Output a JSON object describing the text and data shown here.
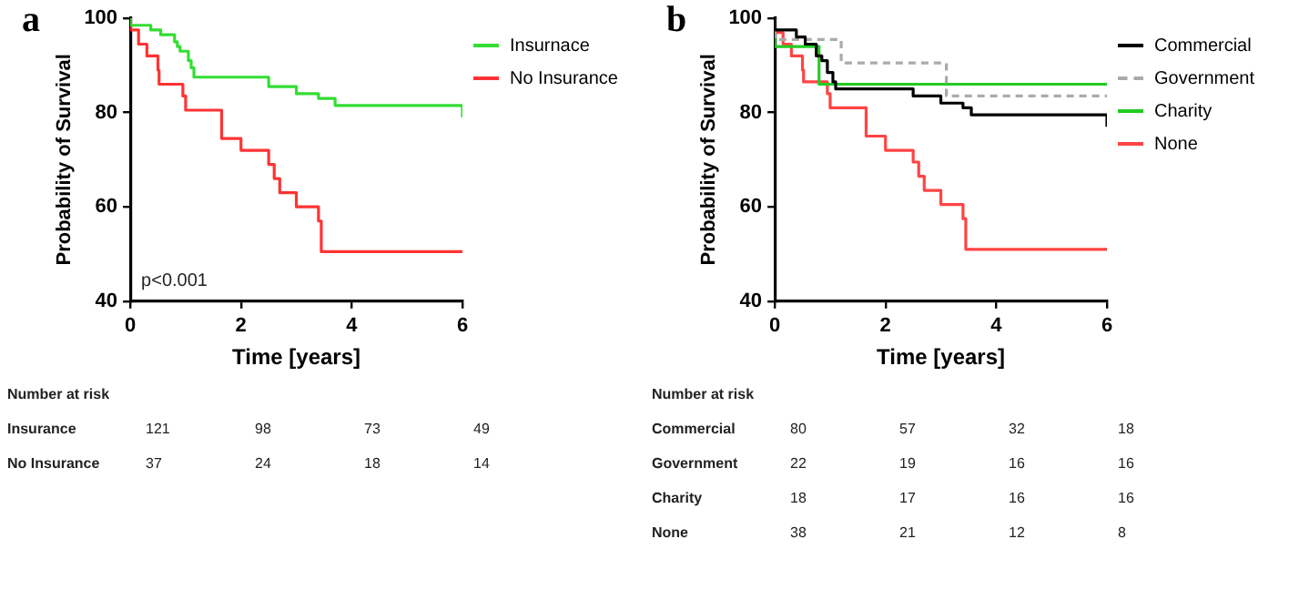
{
  "chart_data": [
    {
      "type": "step",
      "title": "a",
      "xlabel": "Time [years]",
      "ylabel": "Probability of Survival",
      "xlim": [
        0,
        6
      ],
      "xticks": [
        0,
        2,
        4,
        6
      ],
      "ylim": [
        40,
        100
      ],
      "yticks": [
        40,
        60,
        80,
        100
      ],
      "grid": false,
      "legend": "top right",
      "marker": "none",
      "series": [
        {
          "name": "Insurnace",
          "color": "#33dd33",
          "x": [
            0,
            0.37,
            0.55,
            0.8,
            0.85,
            0.9,
            1.05,
            1.1,
            1.15,
            2.5,
            3.0,
            3.4,
            3.7,
            5.2,
            6,
            6
          ],
          "values": [
            100,
            98.5,
            97.5,
            96.5,
            95,
            94,
            93,
            91,
            89.5,
            87.5,
            85.5,
            84,
            83,
            81.5,
            81.5,
            79
          ]
        },
        {
          "name": "No Insurance",
          "color": "#ff3333",
          "x": [
            0,
            0.15,
            0.3,
            0.5,
            0.52,
            0.95,
            1.0,
            1.65,
            2.0,
            2.5,
            2.6,
            2.7,
            3.0,
            3.4,
            3.45,
            3.9,
            6
          ],
          "values": [
            100,
            97.5,
            94.5,
            92,
            89,
            86,
            83.5,
            80.5,
            74.5,
            72,
            69,
            66,
            63,
            60,
            57,
            50.5,
            50.5
          ]
        }
      ],
      "annotations": [
        "p<0.001",
        "Number at risk",
        "Insurance\t121\t98\t73\t49",
        "No Insurance\t37\t24\t18\t14"
      ]
    },
    {
      "type": "step",
      "title": "b",
      "xlabel": "Time [years]",
      "ylabel": "Probability of Survival",
      "xlim": [
        0,
        6
      ],
      "xticks": [
        0,
        2,
        4,
        6
      ],
      "ylim": [
        40,
        100
      ],
      "yticks": [
        40,
        60,
        80,
        100
      ],
      "grid": false,
      "legend": "top right",
      "marker": "none",
      "series": [
        {
          "name": "Commercial",
          "color": "#000000",
          "x": [
            0,
            0.39,
            0.55,
            0.75,
            0.85,
            0.95,
            1.05,
            1.1,
            2.5,
            3.0,
            3.4,
            3.55,
            3.7,
            6,
            6
          ],
          "values": [
            100,
            97.5,
            96,
            94.5,
            92,
            91,
            88.5,
            86.5,
            85,
            83.5,
            82,
            81,
            79.5,
            79.5,
            77
          ]
        },
        {
          "name": "Government",
          "color": "#aaaaaa",
          "line_style": "dashed",
          "x": [
            0,
            1.2,
            3.1,
            5.2,
            6
          ],
          "values": [
            100,
            95.5,
            90.5,
            83.5,
            83.5
          ]
        },
        {
          "name": "Charity",
          "color": "#22cc22",
          "x": [
            0,
            0.8,
            2.5,
            6
          ],
          "values": [
            100,
            94,
            86,
            86
          ]
        },
        {
          "name": "None",
          "color": "#ff4444",
          "x": [
            0,
            0.15,
            0.3,
            0.5,
            0.52,
            0.95,
            1.0,
            1.65,
            2.0,
            2.5,
            2.6,
            2.7,
            3.0,
            3.4,
            3.45,
            3.9,
            6
          ],
          "values": [
            100,
            97,
            94.5,
            92,
            89,
            86.5,
            84,
            81,
            75,
            72,
            69.5,
            66.5,
            63.5,
            60.5,
            57.5,
            51,
            51
          ]
        }
      ],
      "annotations": [
        "Number at risk",
        "Commercial\t80\t57\t32\t18",
        "Government\t22\t19\t16\t16",
        "Charity\t18\t17\t16\t16",
        "None\t38\t21\t12\t8"
      ]
    }
  ]
}
